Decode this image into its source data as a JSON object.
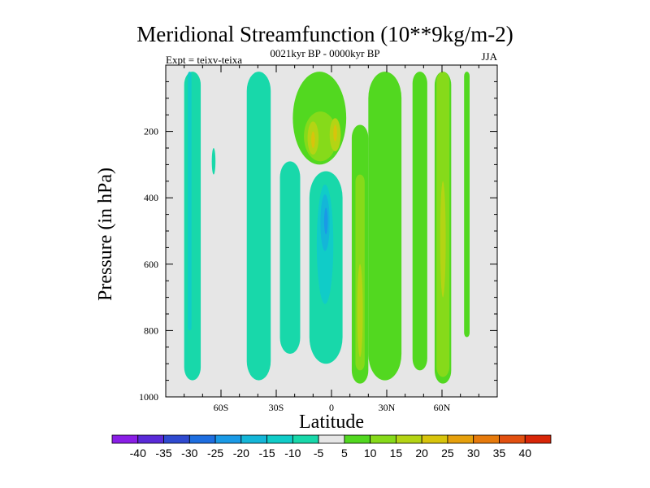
{
  "chart_data": {
    "type": "contour",
    "title": "Meridional Streamfunction (10**9kg/m-2)",
    "subtitle": "0021kyr BP - 0000kyr BP",
    "experiment_label": "Expt = teixv-teixa",
    "season": "JJA",
    "xlabel": "Latitude",
    "ylabel": "Pressure (in hPa)",
    "xlim": [
      -90,
      90
    ],
    "ylim": [
      1000,
      0
    ],
    "x_ticks": [
      {
        "value": -60,
        "label": "60S"
      },
      {
        "value": -30,
        "label": "30S"
      },
      {
        "value": 0,
        "label": "0"
      },
      {
        "value": 30,
        "label": "30N"
      },
      {
        "value": 60,
        "label": "60N"
      }
    ],
    "y_ticks": [
      {
        "value": 200,
        "label": "200"
      },
      {
        "value": 400,
        "label": "400"
      },
      {
        "value": 600,
        "label": "600"
      },
      {
        "value": 800,
        "label": "800"
      },
      {
        "value": 1000,
        "label": "1000"
      }
    ],
    "colorbar": {
      "levels": [
        -40,
        -35,
        -30,
        -25,
        -20,
        -15,
        -10,
        -5,
        5,
        10,
        15,
        20,
        25,
        30,
        35,
        40
      ],
      "colors": [
        "#8a1ee6",
        "#5a2ad8",
        "#2f4ad0",
        "#1e6ee0",
        "#1a9ae6",
        "#14b6d8",
        "#10ccc8",
        "#18d8aa",
        "#e6e6e6",
        "#52d820",
        "#86da1a",
        "#b4d414",
        "#d8c40c",
        "#e6a00c",
        "#e67a0c",
        "#e25010",
        "#d82608"
      ]
    },
    "regions": [
      {
        "level": -5,
        "lat": [
          -80,
          -71
        ],
        "p": [
          20,
          950
        ],
        "shape": "column"
      },
      {
        "level": -10,
        "lat": [
          -78,
          -76
        ],
        "p": [
          20,
          800
        ],
        "shape": "column"
      },
      {
        "level": -5,
        "lat": [
          -46,
          -33
        ],
        "p": [
          20,
          950
        ],
        "shape": "column"
      },
      {
        "level": -5,
        "lat": [
          -65,
          -63
        ],
        "p": [
          250,
          330
        ],
        "shape": "blob"
      },
      {
        "level": -5,
        "lat": [
          -28,
          -17
        ],
        "p": [
          290,
          870
        ],
        "shape": "column"
      },
      {
        "level": -5,
        "lat": [
          -12,
          6
        ],
        "p": [
          320,
          900
        ],
        "shape": "column"
      },
      {
        "level": -10,
        "lat": [
          -8,
          1
        ],
        "p": [
          360,
          720
        ],
        "shape": "blob"
      },
      {
        "level": -15,
        "lat": [
          -6,
          -1
        ],
        "p": [
          390,
          560
        ],
        "shape": "blob"
      },
      {
        "level": -20,
        "lat": [
          -4,
          -2
        ],
        "p": [
          430,
          510
        ],
        "shape": "blob"
      },
      {
        "level": 5,
        "lat": [
          -21,
          8
        ],
        "p": [
          20,
          300
        ],
        "shape": "blob"
      },
      {
        "level": 10,
        "lat": [
          -15,
          3
        ],
        "p": [
          140,
          290
        ],
        "shape": "blob"
      },
      {
        "level": 15,
        "lat": [
          -13,
          -7
        ],
        "p": [
          170,
          270
        ],
        "shape": "blob"
      },
      {
        "level": 20,
        "lat": [
          -11,
          -9
        ],
        "p": [
          200,
          250
        ],
        "shape": "blob"
      },
      {
        "level": 15,
        "lat": [
          -1,
          5
        ],
        "p": [
          160,
          260
        ],
        "shape": "blob"
      },
      {
        "level": 20,
        "lat": [
          1,
          3
        ],
        "p": [
          180,
          230
        ],
        "shape": "blob"
      },
      {
        "level": 5,
        "lat": [
          11,
          20
        ],
        "p": [
          180,
          960
        ],
        "shape": "column"
      },
      {
        "level": 10,
        "lat": [
          13,
          18
        ],
        "p": [
          330,
          920
        ],
        "shape": "column"
      },
      {
        "level": 15,
        "lat": [
          14,
          17
        ],
        "p": [
          600,
          880
        ],
        "shape": "blob"
      },
      {
        "level": 5,
        "lat": [
          20,
          38
        ],
        "p": [
          20,
          950
        ],
        "shape": "column"
      },
      {
        "level": 5,
        "lat": [
          44,
          52
        ],
        "p": [
          20,
          920
        ],
        "shape": "column"
      },
      {
        "level": 5,
        "lat": [
          56,
          65
        ],
        "p": [
          20,
          960
        ],
        "shape": "column"
      },
      {
        "level": 10,
        "lat": [
          57,
          64
        ],
        "p": [
          20,
          940
        ],
        "shape": "column"
      },
      {
        "level": 15,
        "lat": [
          59,
          62
        ],
        "p": [
          350,
          700
        ],
        "shape": "blob"
      },
      {
        "level": 5,
        "lat": [
          72,
          75
        ],
        "p": [
          20,
          820
        ],
        "shape": "column"
      }
    ]
  }
}
